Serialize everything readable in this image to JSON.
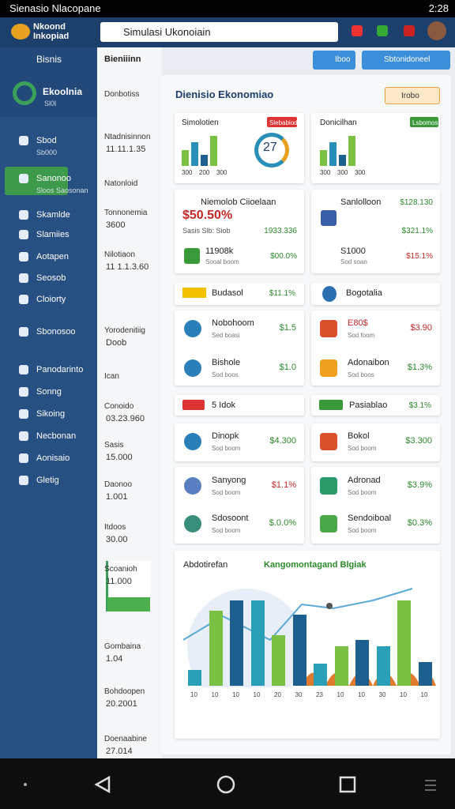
{
  "status_bar": {
    "title": "Sienasio Nlacopane",
    "time": "2:28"
  },
  "header": {
    "brand_line1": "Nkoond",
    "brand_line2": "Inkopiad",
    "search": "Simulasi Ukonoiain"
  },
  "sidebar": {
    "title": "Bisnis",
    "profile_name": "Ekoolnia",
    "profile_sub": "Sl0l",
    "items": [
      {
        "label": "Sbod",
        "sub": "Sb000"
      },
      {
        "label": "Sanonoo",
        "sub": "Sloos Saosonan"
      },
      {
        "label": "Skamlde"
      },
      {
        "label": "Slamiies"
      },
      {
        "label": "Aotapen"
      },
      {
        "label": "Seosob"
      },
      {
        "label": "Cloiorty"
      },
      {
        "label": "Sbonosoo"
      },
      {
        "label": "Panodarinto"
      },
      {
        "label": "Sonng"
      },
      {
        "label": "Sikoing"
      },
      {
        "label": "Necbonan"
      },
      {
        "label": "Aonisaio"
      },
      {
        "label": "Gletig"
      }
    ]
  },
  "list_panel": {
    "title": "Bieniiinn",
    "items": [
      {
        "label": "Donbotiss"
      },
      {
        "label": "Ntadnisinnon",
        "value": "11.11.1.35"
      },
      {
        "label": "Natonloid"
      },
      {
        "label": "Tonnonemia",
        "value": "3600"
      },
      {
        "label": "Nilotiaon",
        "value": "11 1.1.3.60"
      },
      {
        "label": "Yorodenitiig",
        "value": "Doob"
      },
      {
        "label": "Ican"
      },
      {
        "label": "Conoido",
        "value": "03.23.960"
      },
      {
        "label": "Sasis",
        "value": "15.000"
      },
      {
        "label": "Daonoo",
        "value": "1.001"
      },
      {
        "label": "Itdoos",
        "value": "30.00"
      },
      {
        "label": "Scoanioh",
        "value": "11.000"
      },
      {
        "label": "Gombaina",
        "value": "1.04"
      },
      {
        "label": "Bohdoopen",
        "value": "20.2001"
      },
      {
        "label": "Doenaabine",
        "value": "27.014"
      }
    ]
  },
  "toolbar": {
    "button1": "Iboo",
    "button2": "Sbtonidoneel"
  },
  "dashboard": {
    "title": "Dienisio Ekonomiao",
    "action": "Irobo",
    "summary": [
      {
        "title": "Simolotien",
        "badge": "Slebabiod",
        "gauge": "27",
        "ticks": [
          "300",
          "200",
          "300"
        ]
      },
      {
        "title": "Donicilhan",
        "badge": "Lsbomos",
        "ticks": [
          "300",
          "300",
          "300"
        ]
      }
    ],
    "stats": [
      {
        "title": "Niemolob Ciioelaan",
        "value": "$50.50%",
        "row1_label": "Sasis Slb: Siob",
        "row1_value": "1933.336",
        "row2_label": "11908k",
        "row2_sub": "Sooal boom",
        "row2_value": "$00.0%"
      },
      {
        "title": "Sanlolloon",
        "value": "$128.130",
        "row1_value": "$321.1%",
        "row2_label": "S1000",
        "row2_sub": "Sod soan",
        "row2_value": "$15.1%"
      }
    ],
    "section1": {
      "left_badge": "Budasol",
      "left_value": "$11.1%",
      "right": "Bogotalia"
    },
    "list1": [
      {
        "name": "Nobohoom",
        "sub": "Sed boasi",
        "value": "$1.5"
      },
      {
        "name": "E80$",
        "sub": "Sod foom",
        "value": "$3.90"
      },
      {
        "name": "Bishole",
        "sub": "Sod boos",
        "value": "$1.0"
      },
      {
        "name": "Adonaibon",
        "sub": "Sod boos",
        "value": "$1.3%"
      }
    ],
    "section2": {
      "left_badge": "5 Idok",
      "right_badge": "Pasiablao",
      "right_value": "$3.1%"
    },
    "list2": [
      {
        "name": "Dinopk",
        "sub": "Sod boom",
        "value": "$4.300"
      },
      {
        "name": "Bokol",
        "sub": "Sod boom",
        "value": "$3.300"
      },
      {
        "name": "Sanyong",
        "sub": "Sod boom",
        "value": "$1.1%"
      },
      {
        "name": "Adronad",
        "sub": "Sod boom",
        "value": "$3.9%"
      },
      {
        "name": "Sdosoont",
        "sub": "Sod boom",
        "value": "$.0.0%"
      },
      {
        "name": "Sendoiboal",
        "sub": "Sod boom",
        "value": "$0.3%"
      }
    ],
    "chart": {
      "title": "Abdotirefan",
      "subtitle": "Kangomontagand Blgiak",
      "categories": [
        "10",
        "10",
        "10",
        "10",
        "20",
        "30",
        "23",
        "10",
        "10",
        "30",
        "10",
        "10"
      ],
      "values": [
        20,
        95,
        108,
        108,
        64,
        90,
        28,
        50,
        58,
        50,
        108,
        30
      ]
    }
  }
}
